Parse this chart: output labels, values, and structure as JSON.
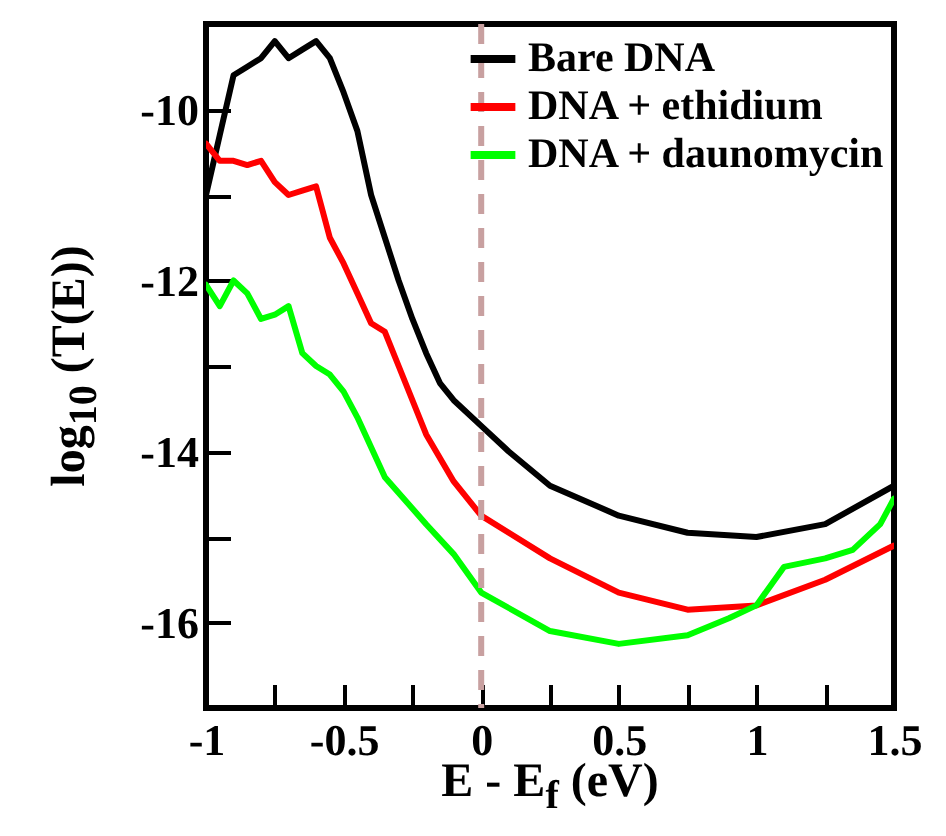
{
  "chart_data": {
    "type": "line",
    "xlabel": "E - E$_{f}$ (eV)",
    "ylabel": "log$_{10}$ (T(E))",
    "xlim": [
      -1,
      1.5
    ],
    "xticks": [
      -1,
      {
        "value": -0.75,
        "label": null
      },
      -0.5,
      {
        "value": -0.25,
        "label": null
      },
      0,
      {
        "value": 0.25,
        "label": null
      },
      0.5,
      {
        "value": 0.75,
        "label": null
      },
      1,
      {
        "value": 1.25,
        "label": null
      },
      1.5
    ],
    "ylim": [
      -17,
      -9
    ],
    "yticks": [
      {
        "value": -17,
        "label": null
      },
      -16,
      {
        "value": -15,
        "label": null
      },
      -14,
      {
        "value": -13,
        "label": null
      },
      -12,
      {
        "value": -11,
        "label": null
      },
      -10
    ],
    "grid": false,
    "legend": "top right",
    "marker": "none",
    "line_style": "solid",
    "ref_lines": [
      {
        "axis": "x",
        "value": 0,
        "color": "#c8a0a0",
        "line_style": "dashed"
      }
    ],
    "series": [
      {
        "name": "Bare DNA",
        "color": "#000000",
        "x": [
          -1,
          -0.95,
          -0.9,
          -0.85,
          -0.8,
          -0.75,
          -0.7,
          -0.65,
          -0.6,
          -0.55,
          -0.5,
          -0.45,
          -0.4,
          -0.35,
          -0.3,
          -0.25,
          -0.2,
          -0.15,
          -0.1,
          0,
          0.1,
          0.25,
          0.5,
          0.75,
          1,
          1.25,
          1.5
        ],
        "values": [
          -11.0,
          -10.3,
          -9.6,
          -9.5,
          -9.4,
          -9.2,
          -9.4,
          -9.3,
          -9.2,
          -9.4,
          -9.8,
          -10.25,
          -11.0,
          -11.5,
          -12.0,
          -12.45,
          -12.85,
          -13.2,
          -13.4,
          -13.7,
          -14.0,
          -14.4,
          -14.75,
          -14.95,
          -15.0,
          -14.85,
          -14.4
        ]
      },
      {
        "name": "DNA + ethidium",
        "color": "#ff0000",
        "x": [
          -1,
          -0.95,
          -0.9,
          -0.85,
          -0.8,
          -0.75,
          -0.7,
          -0.65,
          -0.6,
          -0.55,
          -0.5,
          -0.45,
          -0.4,
          -0.35,
          -0.3,
          -0.2,
          -0.1,
          0,
          0.25,
          0.5,
          0.75,
          1,
          1.25,
          1.5
        ],
        "values": [
          -10.4,
          -10.6,
          -10.6,
          -10.65,
          -10.6,
          -10.85,
          -11.0,
          -10.95,
          -10.9,
          -11.5,
          -11.8,
          -12.15,
          -12.5,
          -12.6,
          -13.0,
          -13.8,
          -14.35,
          -14.75,
          -15.25,
          -15.65,
          -15.85,
          -15.8,
          -15.5,
          -15.1
        ]
      },
      {
        "name": "DNA + daunomycin",
        "color": "#00ff00",
        "x": [
          -1,
          -0.95,
          -0.9,
          -0.85,
          -0.8,
          -0.75,
          -0.7,
          -0.65,
          -0.6,
          -0.55,
          -0.5,
          -0.45,
          -0.35,
          -0.2,
          -0.1,
          0,
          0.25,
          0.5,
          0.75,
          0.9,
          1,
          1.1,
          1.25,
          1.35,
          1.45,
          1.5
        ],
        "values": [
          -12.05,
          -12.3,
          -12.0,
          -12.15,
          -12.45,
          -12.4,
          -12.3,
          -12.85,
          -13.0,
          -13.1,
          -13.3,
          -13.6,
          -14.3,
          -14.85,
          -15.2,
          -15.65,
          -16.1,
          -16.25,
          -16.15,
          -15.95,
          -15.8,
          -15.35,
          -15.25,
          -15.15,
          -14.85,
          -14.55
        ]
      }
    ]
  }
}
